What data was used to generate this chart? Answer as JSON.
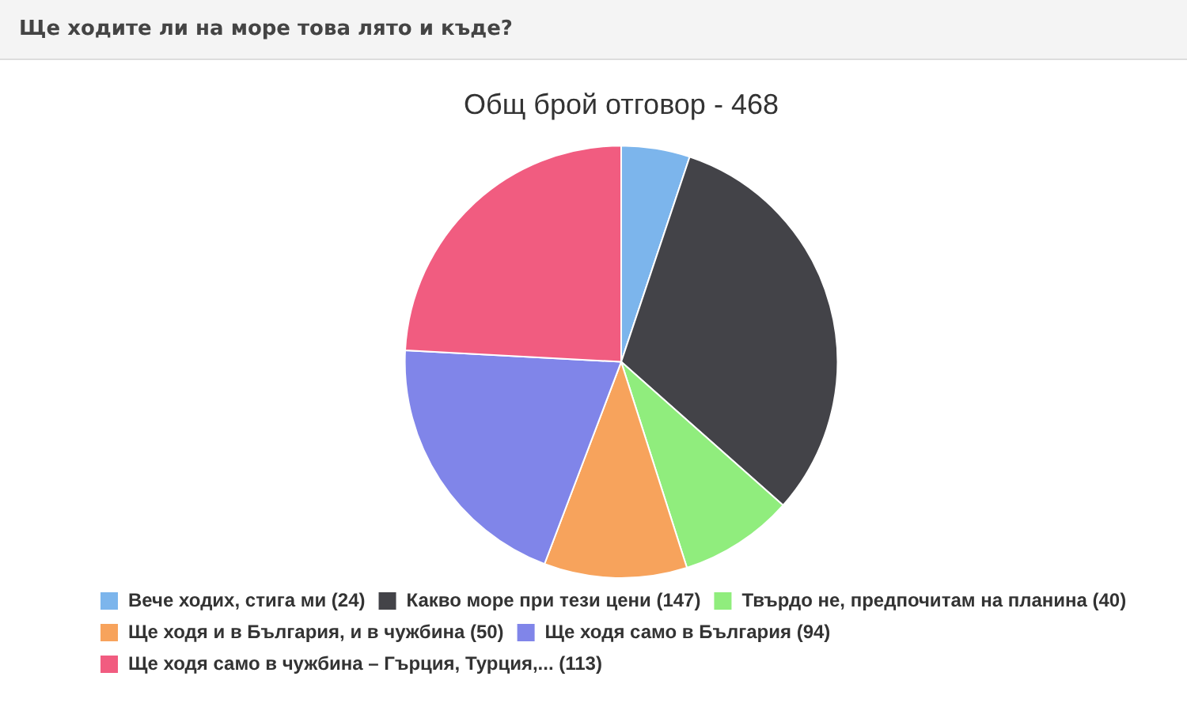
{
  "chart_data": {
    "type": "pie",
    "title": "Ще ходите ли на море това лято и къде?",
    "subtitle": "Общ брой отговор - 468",
    "categories": [
      "Вече ходих, стига ми (24)",
      "Какво море при тези цени (147)",
      "Твърдо не, предпочитам на планина (40)",
      "Ще ходя и в България, и в чужбина (50)",
      "Ще ходя само в България (94)",
      "Ще ходя само в чужбина – Гърция, Турция,... (113)"
    ],
    "values": [
      24,
      147,
      40,
      50,
      94,
      113
    ],
    "colors": [
      "#7cb5ec",
      "#434348",
      "#90ed7d",
      "#f7a35c",
      "#8085e9",
      "#f15c80"
    ],
    "legend": "bottom"
  }
}
